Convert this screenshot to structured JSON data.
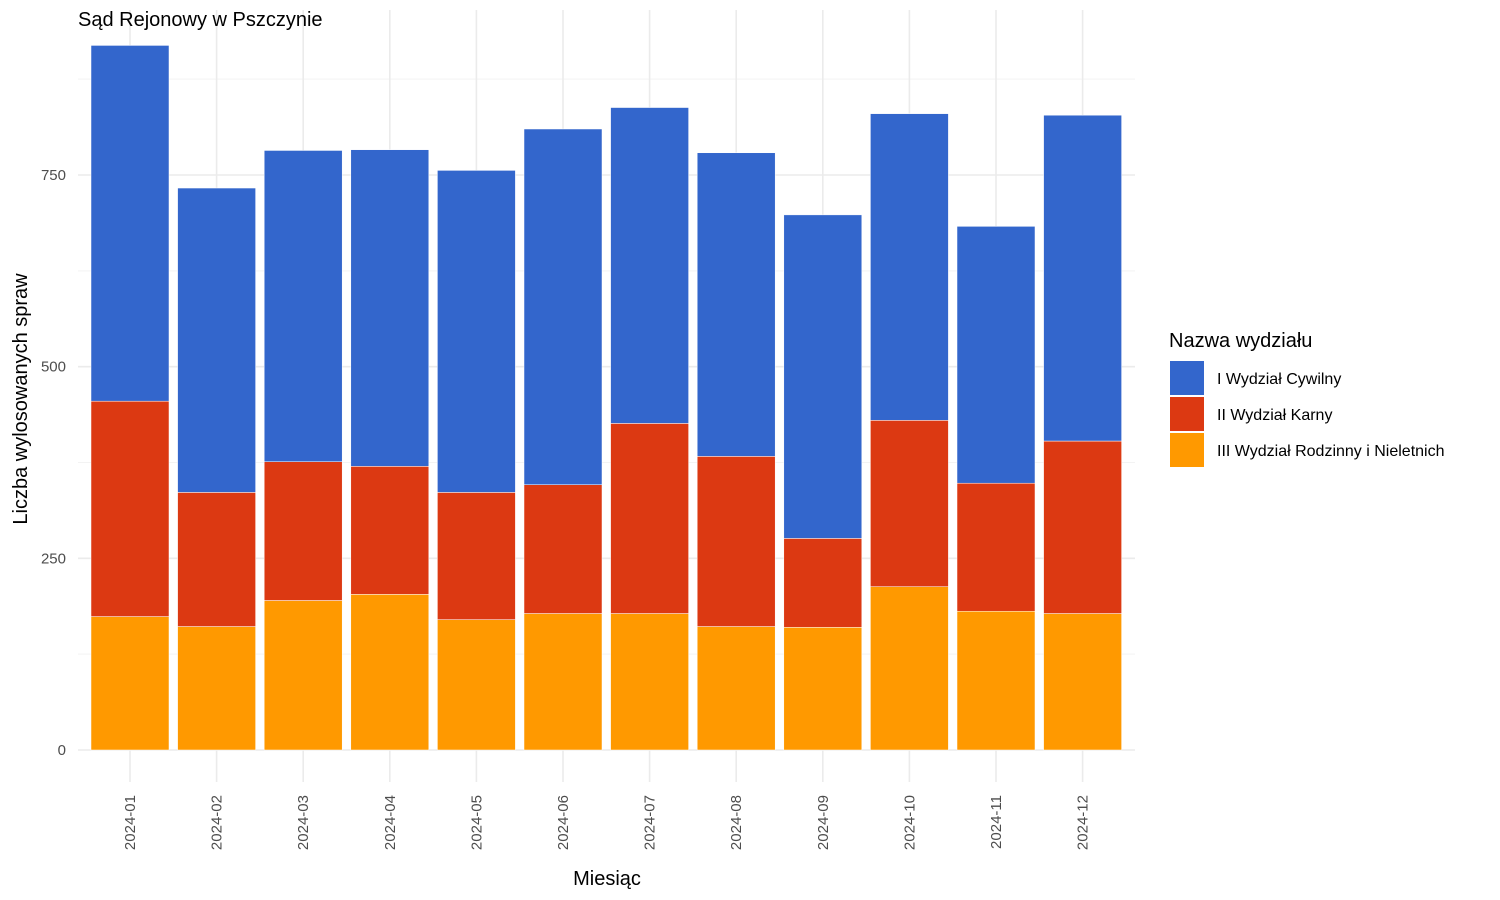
{
  "chart_data": {
    "type": "bar",
    "stacked": true,
    "title": "Sąd Rejonowy w Pszczynie",
    "xlabel": "Miesiąc",
    "ylabel": "Liczba wylosowanych spraw",
    "ylim": [
      0,
      935
    ],
    "y_ticks": [
      0,
      250,
      500,
      750
    ],
    "grid": true,
    "legend_title": "Nazwa wydziału",
    "legend_position": "right",
    "categories": [
      "2024-01",
      "2024-02",
      "2024-03",
      "2024-04",
      "2024-05",
      "2024-06",
      "2024-07",
      "2024-08",
      "2024-09",
      "2024-10",
      "2024-11",
      "2024-12"
    ],
    "series": [
      {
        "name": "III Wydział Rodzinny i Nieletnich",
        "color": "#FF9900",
        "values": [
          174,
          161,
          195,
          203,
          170,
          178,
          178,
          161,
          160,
          213,
          181,
          178
        ]
      },
      {
        "name": "II Wydział Karny",
        "color": "#DC3912",
        "values": [
          281,
          175,
          181,
          167,
          166,
          168,
          248,
          222,
          116,
          217,
          167,
          225
        ]
      },
      {
        "name": "I Wydział Cywilny",
        "color": "#3366CC",
        "values": [
          464,
          397,
          406,
          413,
          420,
          464,
          412,
          396,
          422,
          400,
          335,
          425
        ]
      }
    ],
    "legend_order": [
      "I Wydział Cywilny",
      "II Wydział Karny",
      "III Wydział Rodzinny i Nieletnich"
    ]
  }
}
